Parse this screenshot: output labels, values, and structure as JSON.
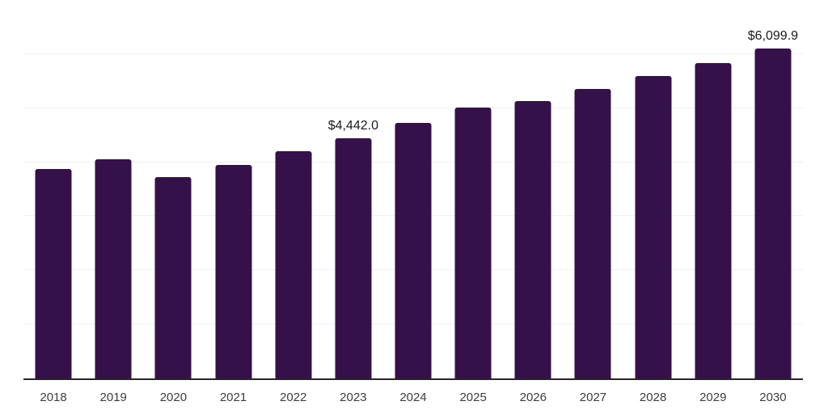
{
  "chart_data": {
    "type": "bar",
    "title": "",
    "xlabel": "",
    "ylabel": "",
    "categories": [
      "2018",
      "2019",
      "2020",
      "2021",
      "2022",
      "2023",
      "2024",
      "2025",
      "2026",
      "2027",
      "2028",
      "2029",
      "2030"
    ],
    "values": [
      3880,
      4060,
      3720,
      3950,
      4200,
      4442.0,
      4730,
      5010,
      5130,
      5360,
      5600,
      5840,
      6099.9
    ],
    "bar_labels": {
      "2023": "$4,442.0",
      "2030": "$6,099.9"
    },
    "ylim": [
      0,
      7000
    ],
    "gridline_step": 1000,
    "grid": true,
    "legend": false,
    "colors": {
      "bar": "#351149",
      "axis": "#262626",
      "gridline": "#f0f0f0",
      "value_label": "#1a1a1a",
      "tick_label": "#3d3d3d",
      "background": "#ffffff"
    }
  }
}
